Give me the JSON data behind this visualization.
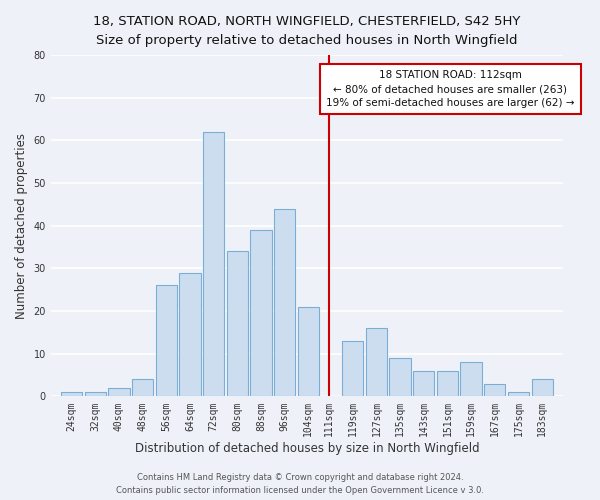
{
  "title_line1": "18, STATION ROAD, NORTH WINGFIELD, CHESTERFIELD, S42 5HY",
  "title_line2": "Size of property relative to detached houses in North Wingfield",
  "xlabel": "Distribution of detached houses by size in North Wingfield",
  "ylabel": "Number of detached properties",
  "bar_labels": [
    "24sqm",
    "32sqm",
    "40sqm",
    "48sqm",
    "56sqm",
    "64sqm",
    "72sqm",
    "80sqm",
    "88sqm",
    "96sqm",
    "104sqm",
    "111sqm",
    "119sqm",
    "127sqm",
    "135sqm",
    "143sqm",
    "151sqm",
    "159sqm",
    "167sqm",
    "175sqm",
    "183sqm"
  ],
  "bar_values": [
    1,
    1,
    2,
    4,
    26,
    29,
    62,
    34,
    39,
    44,
    21,
    0,
    13,
    16,
    9,
    6,
    6,
    8,
    3,
    1,
    4
  ],
  "bar_centers": [
    24,
    32,
    40,
    48,
    56,
    64,
    72,
    80,
    88,
    96,
    104,
    111,
    119,
    127,
    135,
    143,
    151,
    159,
    167,
    175,
    183
  ],
  "bar_color": "#ccddf0",
  "bar_edgecolor": "#7aaed4",
  "vline_x": 111,
  "vline_color": "#cc0000",
  "annotation_title": "18 STATION ROAD: 112sqm",
  "annotation_line2": "← 80% of detached houses are smaller (263)",
  "annotation_line3": "19% of semi-detached houses are larger (62) →",
  "annotation_box_edgecolor": "#cc0000",
  "annotation_box_facecolor": "#ffffff",
  "ylim": [
    0,
    80
  ],
  "yticks": [
    0,
    10,
    20,
    30,
    40,
    50,
    60,
    70,
    80
  ],
  "footer_line1": "Contains HM Land Registry data © Crown copyright and database right 2024.",
  "footer_line2": "Contains public sector information licensed under the Open Government Licence v 3.0.",
  "bg_color": "#eef2f8",
  "grid_color": "#ffffff",
  "title_fontsize": 9.5,
  "subtitle_fontsize": 8.5,
  "axis_label_fontsize": 8.5,
  "tick_fontsize": 7,
  "footer_fontsize": 6,
  "annotation_fontsize": 7.5
}
